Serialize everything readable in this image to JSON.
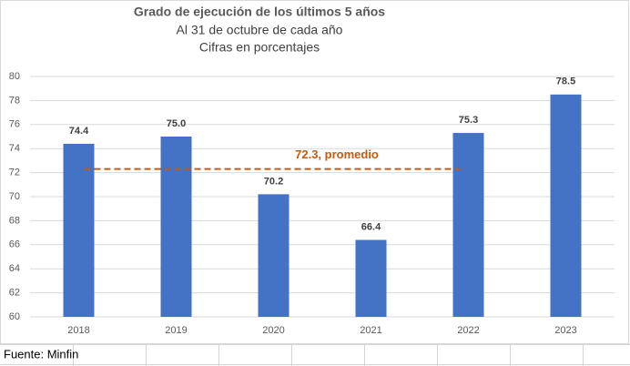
{
  "chart_data": {
    "type": "bar",
    "title": "Grado de ejecución de los últimos 5 años",
    "subtitle": [
      "Al 31 de octubre de cada año",
      "Cifras en porcentajes"
    ],
    "categories": [
      "2018",
      "2019",
      "2020",
      "2021",
      "2022",
      "2023"
    ],
    "values": [
      74.4,
      75.0,
      70.2,
      66.4,
      75.3,
      78.5
    ],
    "value_labels": [
      "74.4",
      "75.0",
      "70.2",
      "66.4",
      "75.3",
      "78.5"
    ],
    "color": "#4472c4",
    "ylim": [
      60,
      80
    ],
    "yticks": [
      60,
      62,
      64,
      66,
      68,
      70,
      72,
      74,
      76,
      78,
      80
    ],
    "grid": true,
    "average": {
      "value": 72.3,
      "label": "72.3, promedio",
      "color": "#c55a11"
    },
    "source": "Fuente: Minfin"
  }
}
